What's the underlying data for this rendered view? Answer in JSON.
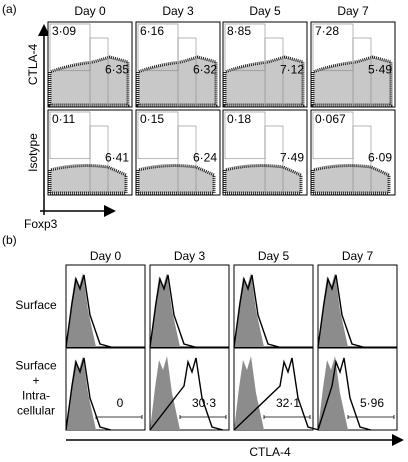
{
  "panel_a": {
    "label": "(a)",
    "columns": [
      "Day 0",
      "Day 3",
      "Day 5",
      "Day 7"
    ],
    "row_labels": [
      "CTLA-4",
      "Isotype"
    ],
    "x_label": "Foxp3",
    "rows": [
      {
        "left": [
          "3·09",
          "6·16",
          "8·85",
          "7·28"
        ],
        "right": [
          "6·35",
          "6·32",
          "7·12",
          "5·49"
        ]
      },
      {
        "left": [
          "0·11",
          "0·15",
          "0·18",
          "0·067"
        ],
        "right": [
          "6·41",
          "6·24",
          "7·49",
          "6·09"
        ]
      }
    ]
  },
  "panel_b": {
    "label": "(b)",
    "columns": [
      "Day 0",
      "Day 3",
      "Day 5",
      "Day 7"
    ],
    "row_labels": [
      [
        "Surface"
      ],
      [
        "Surface",
        "+",
        "Intra-",
        "cellular"
      ]
    ],
    "x_label": "CTLA-4",
    "gate_values": [
      "0",
      "30·3",
      "32·1",
      "5·96"
    ]
  }
}
